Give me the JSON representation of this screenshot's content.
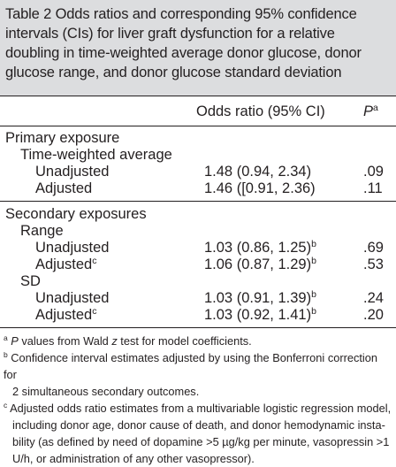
{
  "caption": "Table 2 Odds ratios and corresponding 95% confidence intervals (CIs) for liver graft dysfunction for a relative doubling in time-weighted average donor glucose, donor glucose range, and donor glucose standard deviation",
  "header": {
    "or_label": "Odds ratio (95% CI)",
    "p_label": "P",
    "p_sup": "a"
  },
  "primary": {
    "title": "Primary exposure",
    "group": "Time-weighted average",
    "rows": [
      {
        "label": "Unadjusted",
        "or": "1.48 (0.94, 2.34)",
        "p": ".09"
      },
      {
        "label": "Adjusted",
        "or": "1.46 ([0.91, 2.36)",
        "p": ".11"
      }
    ]
  },
  "secondary": {
    "title": "Secondary exposures",
    "range": {
      "group": "Range",
      "rows": [
        {
          "label": "Unadjusted",
          "or": "1.03 (0.86, 1.25)",
          "or_sup": "b",
          "p": ".69"
        },
        {
          "label": "Adjusted",
          "label_sup": "c",
          "or": "1.06 (0.87, 1.29)",
          "or_sup": "b",
          "p": ".53"
        }
      ]
    },
    "sd": {
      "group": "SD",
      "rows": [
        {
          "label": "Unadjusted",
          "or": "1.03 (0.91, 1.39)",
          "or_sup": "b",
          "p": ".24"
        },
        {
          "label": "Adjusted",
          "label_sup": "c",
          "or": "1.03 (0.92, 1.41)",
          "or_sup": "b",
          "p": ".20"
        }
      ]
    }
  },
  "footnotes": {
    "a": {
      "mark": "a",
      "italic_start": "P",
      "text_1": " values from Wald ",
      "italic_mid": "z",
      "text_2": " test for model coefficients."
    },
    "b": {
      "mark": "b",
      "line1": "Confidence interval estimates adjusted by using the Bonferroni correction for",
      "line2": "2 simultaneous secondary outcomes."
    },
    "c": {
      "mark": "c",
      "line1": "Adjusted odds ratio estimates from a multivariable logistic regression model,",
      "line2": "including donor age, donor cause of death, and donor hemodynamic insta-",
      "line3": "bility (as defined by need of dopamine >5 µg/kg per minute, vasopressin >1",
      "line4": "U/h, or administration of any other vasopressor)."
    }
  }
}
